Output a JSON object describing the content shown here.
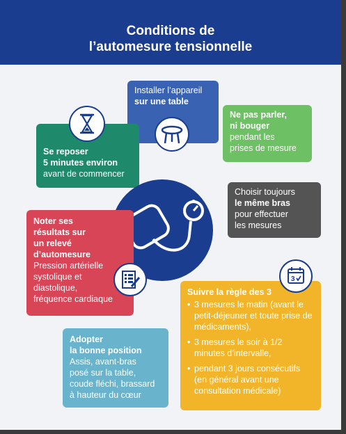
{
  "title_line1": "Conditions de",
  "title_line2": "l’automesure tensionnelle",
  "cards": {
    "table": {
      "line1": "Installer l’appareil",
      "line2": "sur une table"
    },
    "talk": {
      "bold1": "Ne pas parler,",
      "bold2": "ni bouger",
      "line3": "pendant les",
      "line4": "prises de mesure"
    },
    "rest": {
      "bold1": "Se reposer",
      "bold2": "5 minutes environ",
      "line3": "avant de commencer"
    },
    "arm": {
      "line1": "Choisir toujours",
      "bold2": "le même bras",
      "line3": "pour effectuer",
      "line4": "les mesures"
    },
    "record": {
      "bold1": "Noter ses",
      "bold2": "résultats sur",
      "bold3": "un relevé",
      "bold4": "d’automesure",
      "line5": "Pression artérielle",
      "line6": "systolique et",
      "line7": "diastolique,",
      "line8": "fréquence cardiaque"
    },
    "rule": {
      "bold1": "Suivre la règle des 3",
      "items": [
        "3 mesures le matin (avant le petit-déjeuner et toute prise de médicaments),",
        "3 mesures le soir à 1/2 minutes d’intervalle,",
        "pendant 3 jours consécutifs (en général avant une consultation médicale)"
      ]
    },
    "position": {
      "bold1": "Adopter",
      "bold2": "la bonne position",
      "line3": "Assis, avant-bras",
      "line4": "posé sur la table,",
      "line5": "coude fléchi, brassard",
      "line6": "à hauteur du cœur"
    }
  },
  "calendar_label": "3",
  "colors": {
    "header": "#1a3d8f",
    "table": "#3a62b3",
    "talk": "#6dc063",
    "rest": "#1f8a6b",
    "arm": "#545454",
    "record": "#d84557",
    "rule": "#f2b529",
    "position": "#6ab3cc"
  },
  "icons": [
    "hourglass-icon",
    "table-icon",
    "blood-pressure-monitor-icon",
    "clipboard-icon",
    "calendar-icon"
  ]
}
